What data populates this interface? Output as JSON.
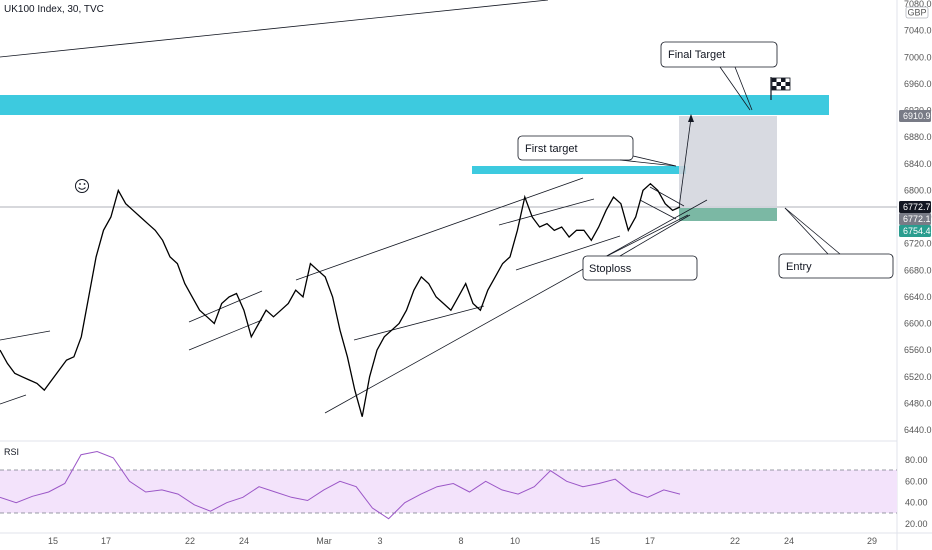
{
  "header": {
    "symbol": "UK100 Index, 30, TVC",
    "currency": "GBP"
  },
  "rsi_label": "RSI",
  "annotations": {
    "final_target": "Final Target",
    "first_target": "First target",
    "stoploss": "Stoploss",
    "entry": "Entry"
  },
  "price_tags": [
    {
      "value": "6910.9",
      "color": "#787b86"
    },
    {
      "value": "6772.7",
      "color": "#131722"
    },
    {
      "value": "6772.1",
      "color": "#787b86"
    },
    {
      "value": "6754.4",
      "color": "#2a9d8f"
    }
  ],
  "colors": {
    "zone": "#3dcadf",
    "target_box": "#d1d4dc",
    "stop_box": "#7bb8a4",
    "rsi_band": "#f3e3fb",
    "rsi_line": "#9b57c7"
  },
  "chart_data": {
    "type": "line",
    "series": [
      {
        "values": [
          6560,
          6540,
          6525,
          6520,
          6515,
          6510,
          6500,
          6515,
          6530,
          6545,
          6550,
          6580,
          6640,
          6700,
          6740,
          6760,
          6800,
          6780,
          6770,
          6760,
          6750,
          6740,
          6725,
          6700,
          6690,
          6660,
          6640,
          6620,
          6610,
          6600,
          6630,
          6640,
          6645,
          6620,
          6580,
          6600,
          6620,
          6610,
          6620,
          6630,
          6650,
          6640,
          6690,
          6680,
          6670,
          6640,
          6590,
          6550,
          6500,
          6460,
          6520,
          6560,
          6580,
          6590,
          6600,
          6620,
          6650,
          6670,
          6660,
          6640,
          6630,
          6620,
          6640,
          6660,
          6630,
          6620,
          6650,
          6670,
          6690,
          6700,
          6740,
          6790,
          6760,
          6745,
          6750,
          6740,
          6745,
          6730,
          6740,
          6740,
          6725,
          6745,
          6770,
          6790,
          6780,
          6740,
          6760,
          6800,
          6810,
          6800,
          6780,
          6770,
          6775
        ]
      },
      {
        "values": [
          45,
          40,
          46,
          50,
          58,
          85,
          88,
          82,
          60,
          50,
          52,
          48,
          38,
          32,
          40,
          45,
          55,
          50,
          45,
          42,
          52,
          60,
          55,
          35,
          25,
          40,
          48,
          55,
          58,
          50,
          60,
          52,
          48,
          55,
          70,
          60,
          55,
          58,
          62,
          50,
          45,
          52,
          48
        ]
      }
    ],
    "y_ticks": [
      "7080.0",
      "7040.0",
      "7000.0",
      "6960.0",
      "6920.0",
      "6880.0",
      "6840.0",
      "6800.0",
      "6760.0",
      "6720.0",
      "6680.0",
      "6640.0",
      "6600.0",
      "6560.0",
      "6520.0",
      "6480.0",
      "6440.0"
    ],
    "rsi_ticks": [
      "80.00",
      "60.00",
      "40.00",
      "20.00"
    ],
    "x_ticks": [
      "15",
      "17",
      "22",
      "24",
      "Mar",
      "3",
      "8",
      "10",
      "15",
      "17",
      "22",
      "24",
      "29"
    ],
    "ylim": [
      6440,
      7080
    ],
    "rsi_ylim": [
      15,
      85
    ],
    "grid": false
  }
}
